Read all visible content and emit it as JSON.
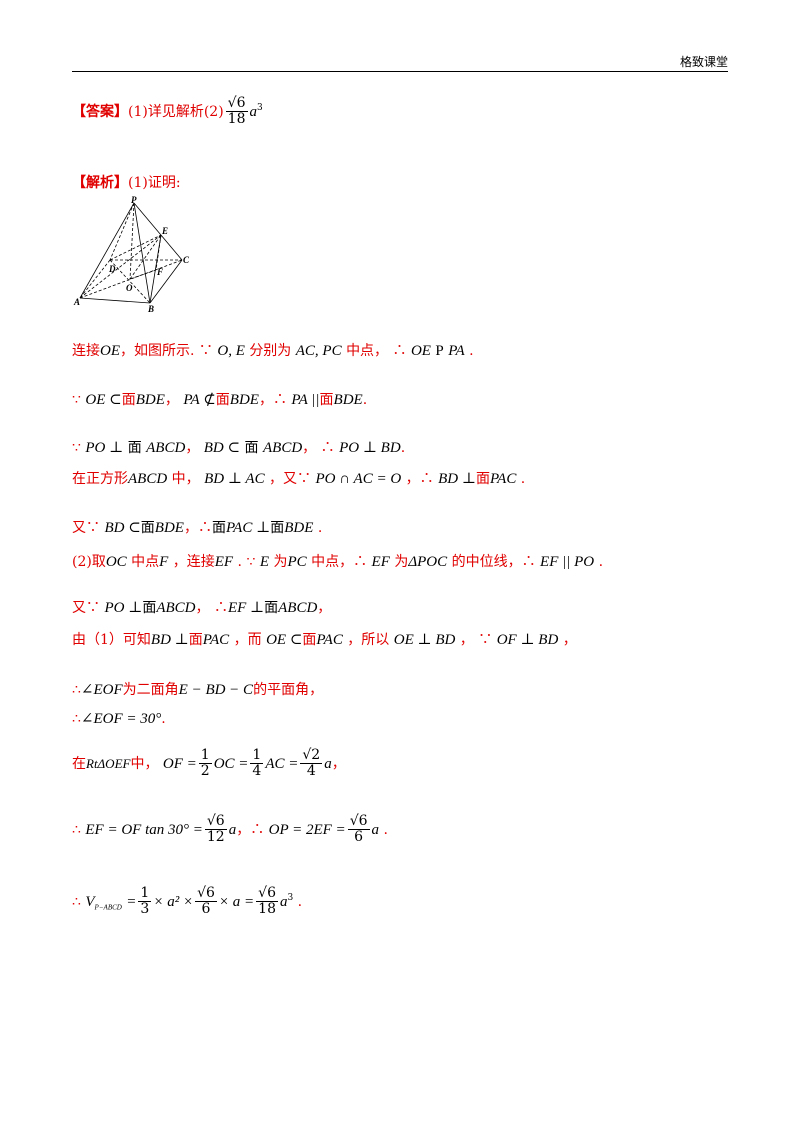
{
  "header": {
    "brand": "格致课堂"
  },
  "answer": {
    "label": "【答案】",
    "text": "(1)详见解析(2)",
    "num": "√6",
    "den": "18",
    "var": "a",
    "exp": "3"
  },
  "analysis": {
    "label": "【解析】",
    "text": "(1)证明:"
  },
  "figure": {
    "P": "P",
    "E": "E",
    "D": "D",
    "C": "C",
    "F": "F",
    "O": "O",
    "A": "A",
    "B": "B"
  },
  "lines": {
    "l1": {
      "a": "连接",
      "b": "OE",
      "c": "，如图所示.",
      "d": "∵",
      "e": "O, E",
      "f": "分别为",
      "g": "AC, PC",
      "h": "中点，",
      "i": "∴",
      "j": "OE",
      "k": "P",
      "l": "PA",
      "m": "."
    },
    "l2": {
      "a": "∵",
      "b": "OE ⊂",
      "c": "面",
      "d": "BDE",
      "e": "，",
      "f": "PA ⊄",
      "g": "面",
      "h": "BDE",
      "i": "，",
      "j": "∴",
      "k": "PA ||",
      "l": "面",
      "m": "BDE",
      "n": "."
    },
    "l3": {
      "a": "∵",
      "b": "PO ⊥",
      "c": "面",
      "d": "ABCD",
      "e": "，",
      "f": "BD ⊂",
      "g": "面",
      "h": "ABCD",
      "i": "，",
      "j": "∴",
      "k": "PO ⊥ BD",
      "l": "."
    },
    "l4": {
      "a": "在正方形",
      "b": "ABCD",
      "c": "中，",
      "d": "BD ⊥ AC",
      "e": "，又",
      "f": "∵",
      "g": "PO ∩ AC = O",
      "h": "，",
      "i": "∴",
      "j": "BD ⊥",
      "k": "面",
      "l": "PAC",
      "m": "."
    },
    "l5": {
      "a": "又",
      "b": "∵",
      "c": "BD ⊂",
      "d": "面",
      "e": "BDE",
      "f": "，",
      "g": "∴",
      "h": "面",
      "i": "PAC ⊥",
      "j": "面",
      "k": "BDE",
      "l": "."
    },
    "l6": {
      "a": "(2)取",
      "b": "OC",
      "c": "中点",
      "d": "F",
      "e": "，连接",
      "f": "EF",
      "g": ".",
      "h": "∵",
      "i": "E",
      "j": "为",
      "k": "PC",
      "l": "中点，",
      "m": "∴",
      "n": "EF",
      "o": "为",
      "p": "ΔPOC",
      "q": "的中位线，",
      "r": "∴",
      "s": "EF || PO",
      "t": "."
    },
    "l7": {
      "a": "又",
      "b": "∵",
      "c": "PO ⊥",
      "d": "面",
      "e": "ABCD",
      "f": "，",
      "g": "∴",
      "h": "EF ⊥",
      "i": "面",
      "j": "ABCD",
      "k": "，"
    },
    "l8": {
      "a": "由（1）可知",
      "b": "BD ⊥",
      "c": "面",
      "d": "PAC",
      "e": "，而",
      "f": "OE ⊂",
      "g": "面",
      "h": "PAC",
      "i": "，所以",
      "j": "OE ⊥ BD",
      "k": "，",
      "l": "∵",
      "m": "OF ⊥ BD",
      "n": "，"
    },
    "l9": {
      "a": "∴",
      "b": "∠EOF",
      "c": "为二面角",
      "d": "E − BD − C",
      "e": "的平面角，"
    },
    "l10": {
      "a": "∴",
      "b": "∠EOF = 30°",
      "c": "."
    },
    "l11": {
      "a": "在",
      "b": "RtΔOEF",
      "c": "中，",
      "d": "OF =",
      "e1": "1",
      "e2": "2",
      "f": "OC =",
      "g1": "1",
      "g2": "4",
      "h": "AC =",
      "i1": "√2",
      "i2": "4",
      "j": "a",
      "k": "，"
    },
    "l12": {
      "a": "∴",
      "b": "EF = OF tan 30° =",
      "c1": "√6",
      "c2": "12",
      "d": "a",
      "e": "，",
      "f": "∴",
      "g": "OP = 2EF =",
      "h1": "√6",
      "h2": "6",
      "i": "a",
      "j": "."
    },
    "l13": {
      "a": "∴",
      "b": "V",
      "c": "P−ABCD",
      "d": "=",
      "e1": "1",
      "e2": "3",
      "f": "× a² ×",
      "g1": "√6",
      "g2": "6",
      "h": "× a =",
      "i1": "√6",
      "i2": "18",
      "j": "a",
      "k": "3",
      "l": "."
    }
  }
}
